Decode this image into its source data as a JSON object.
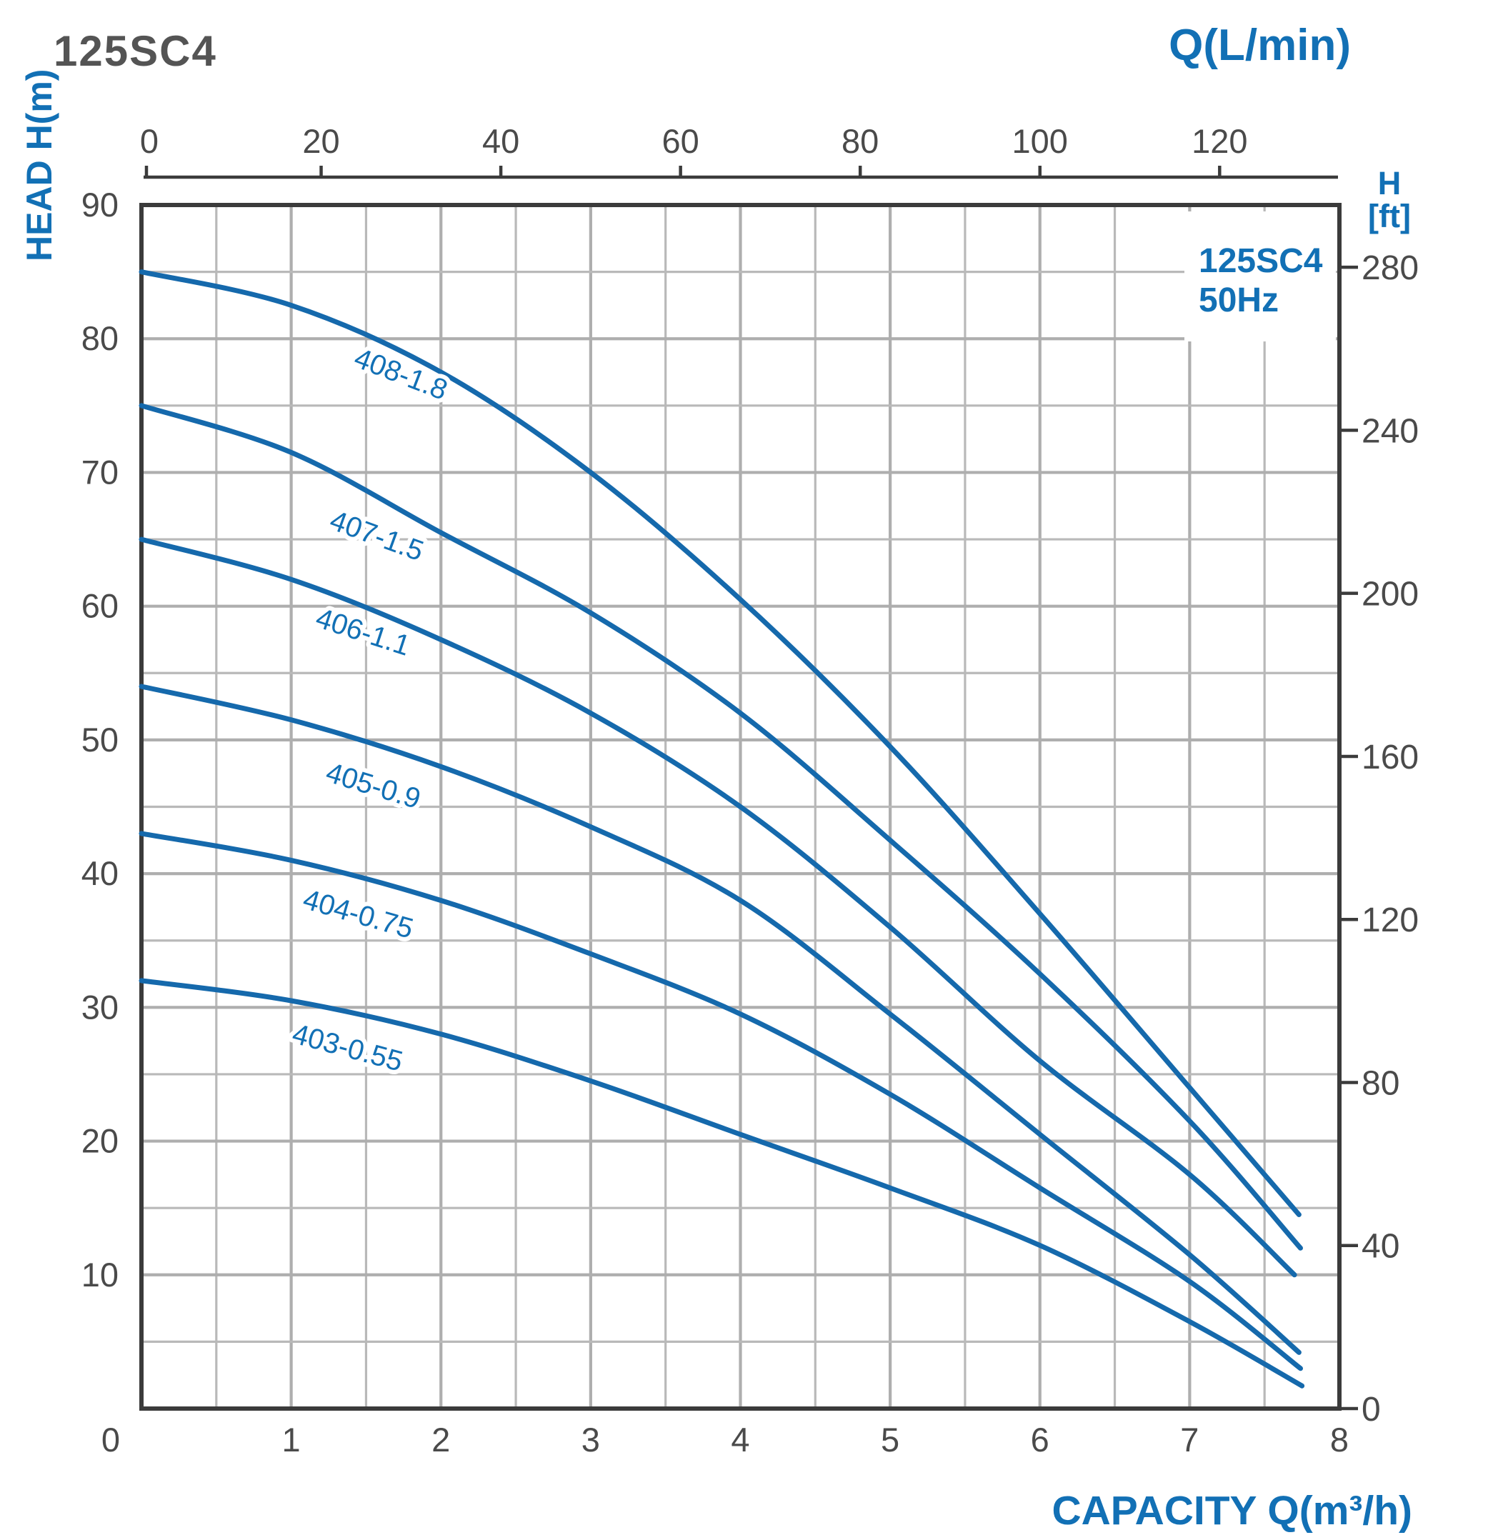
{
  "header": {
    "title": "125SC4"
  },
  "top_axis": {
    "title": "Q(L/min)",
    "ticks": [
      0,
      20,
      40,
      60,
      80,
      100,
      120
    ]
  },
  "left_axis": {
    "title": "HEAD H(m)",
    "ticks": [
      90,
      80,
      70,
      60,
      50,
      40,
      30,
      20,
      10
    ]
  },
  "right_axis": {
    "title_line1": "H",
    "title_line2": "[ft]",
    "ticks": [
      280,
      240,
      200,
      160,
      120,
      80,
      40,
      0
    ]
  },
  "bottom_axis": {
    "title": "CAPACITY Q(m³/h)",
    "ticks": [
      0,
      1,
      2,
      3,
      4,
      5,
      6,
      7,
      8
    ]
  },
  "legend": {
    "line1": "125SC4",
    "line2": "50Hz"
  },
  "colors": {
    "blue": "#1270b5",
    "curve_blue": "#1569ac",
    "dark_gray_text": "#4a4a4a",
    "title_gray": "#545454",
    "grid_gray": "#b3b3b3",
    "border_gray": "#3b3b3b",
    "background": "#ffffff"
  },
  "chart_data": {
    "type": "line",
    "title": "125SC4",
    "xlabel": "CAPACITY Q(m³/h)",
    "ylabel": "HEAD H(m)",
    "secondary_xlabel": "Q(L/min)",
    "secondary_ylabel": "H [ft]",
    "xlim": [
      0,
      8
    ],
    "ylim": [
      0,
      90
    ],
    "x_gridline_step": 0.5,
    "y_gridline_step": 5,
    "grid": true,
    "legend_position": "top-right",
    "legend_entries": [
      "125SC4",
      "50Hz"
    ],
    "series": [
      {
        "name": "408-1.8",
        "points": [
          [
            0,
            85
          ],
          [
            1,
            82.5
          ],
          [
            2,
            77.5
          ],
          [
            3,
            70
          ],
          [
            4,
            60.5
          ],
          [
            5,
            49.5
          ],
          [
            6,
            37
          ],
          [
            7,
            24
          ],
          [
            7.73,
            14.5
          ]
        ]
      },
      {
        "name": "407-1.5",
        "points": [
          [
            0,
            75
          ],
          [
            1,
            71.5
          ],
          [
            2,
            65.5
          ],
          [
            3,
            59.5
          ],
          [
            4,
            52
          ],
          [
            5,
            42.5
          ],
          [
            6,
            32.5
          ],
          [
            7,
            21.5
          ],
          [
            7.74,
            12
          ]
        ]
      },
      {
        "name": "406-1.1",
        "points": [
          [
            0,
            65
          ],
          [
            1,
            62
          ],
          [
            2,
            57.5
          ],
          [
            3,
            52
          ],
          [
            4,
            45
          ],
          [
            5,
            36
          ],
          [
            6,
            26
          ],
          [
            7,
            17.5
          ],
          [
            7.7,
            10
          ]
        ]
      },
      {
        "name": "405-0.9",
        "points": [
          [
            0,
            54
          ],
          [
            1,
            51.5
          ],
          [
            2,
            48
          ],
          [
            3,
            43.5
          ],
          [
            4,
            38
          ],
          [
            5,
            29.5
          ],
          [
            6,
            20.5
          ],
          [
            7,
            11.5
          ],
          [
            7.73,
            4.2
          ]
        ]
      },
      {
        "name": "404-0.75",
        "points": [
          [
            0,
            43
          ],
          [
            1,
            41
          ],
          [
            2,
            38
          ],
          [
            3,
            34
          ],
          [
            4,
            29.5
          ],
          [
            5,
            23.5
          ],
          [
            6,
            16.5
          ],
          [
            7,
            9.5
          ],
          [
            7.74,
            3
          ]
        ]
      },
      {
        "name": "403-0.55",
        "points": [
          [
            0,
            32
          ],
          [
            1,
            30.5
          ],
          [
            2,
            28
          ],
          [
            3,
            24.5
          ],
          [
            4,
            20.5
          ],
          [
            5,
            16.5
          ],
          [
            6,
            12.2
          ],
          [
            7,
            6.5
          ],
          [
            7.75,
            1.7
          ]
        ]
      }
    ],
    "curve_labels": [
      {
        "text": "408-1.8",
        "x": 1.71,
        "y": 76.7,
        "angle": 21
      },
      {
        "text": "407-1.5",
        "x": 1.55,
        "y": 64.6,
        "angle": 20
      },
      {
        "text": "406-1.1",
        "x": 1.46,
        "y": 57.4,
        "angle": 18
      },
      {
        "text": "405-0.9",
        "x": 1.53,
        "y": 45.9,
        "angle": 17
      },
      {
        "text": "404-0.75",
        "x": 1.43,
        "y": 36.3,
        "angle": 16
      },
      {
        "text": "403-0.55",
        "x": 1.36,
        "y": 26.3,
        "angle": 15
      }
    ],
    "ft_per_m": 3.2808
  }
}
